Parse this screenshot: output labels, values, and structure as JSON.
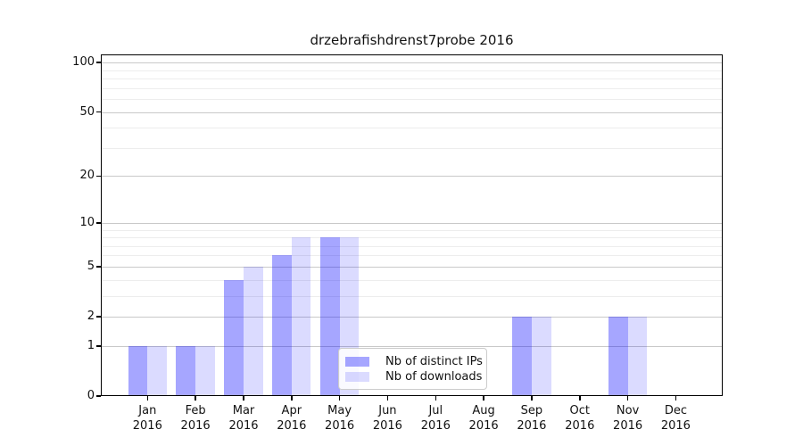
{
  "chart_data": {
    "type": "bar",
    "title": "drzebrafishdrenst7probe 2016",
    "categories": [
      "Jan 2016",
      "Feb 2016",
      "Mar 2016",
      "Apr 2016",
      "May 2016",
      "Jun 2016",
      "Jul 2016",
      "Aug 2016",
      "Sep 2016",
      "Oct 2016",
      "Nov 2016",
      "Dec 2016"
    ],
    "series": [
      {
        "name": "Nb of distinct IPs",
        "color": "rgba(0,0,255,0.35)",
        "values": [
          1,
          1,
          4,
          6,
          8,
          0,
          0,
          0,
          2,
          0,
          2,
          0
        ]
      },
      {
        "name": "Nb of downloads",
        "color": "rgba(0,0,255,0.14)",
        "values": [
          1,
          1,
          5,
          8,
          8,
          0,
          0,
          0,
          2,
          0,
          2,
          0
        ]
      }
    ],
    "xlabel": "",
    "ylabel": "",
    "y_scale": "log1p",
    "y_major_ticks": [
      0,
      1,
      2,
      5,
      10,
      20,
      50,
      100
    ],
    "y_minor_ticks": [
      3,
      4,
      6,
      7,
      8,
      9,
      30,
      40,
      60,
      70,
      80,
      90
    ],
    "ylim": [
      0,
      112
    ],
    "grid": true,
    "legend_position": "lower center"
  },
  "colors": {
    "bar_distinct_ips_solid": "#a8a8fa",
    "bar_downloads_solid": "#dcdcfa",
    "grid_major": "#c9c9c9",
    "grid_minor": "#ededed",
    "axis": "#000000",
    "legend_border": "#cccccc",
    "background": "#ffffff"
  }
}
